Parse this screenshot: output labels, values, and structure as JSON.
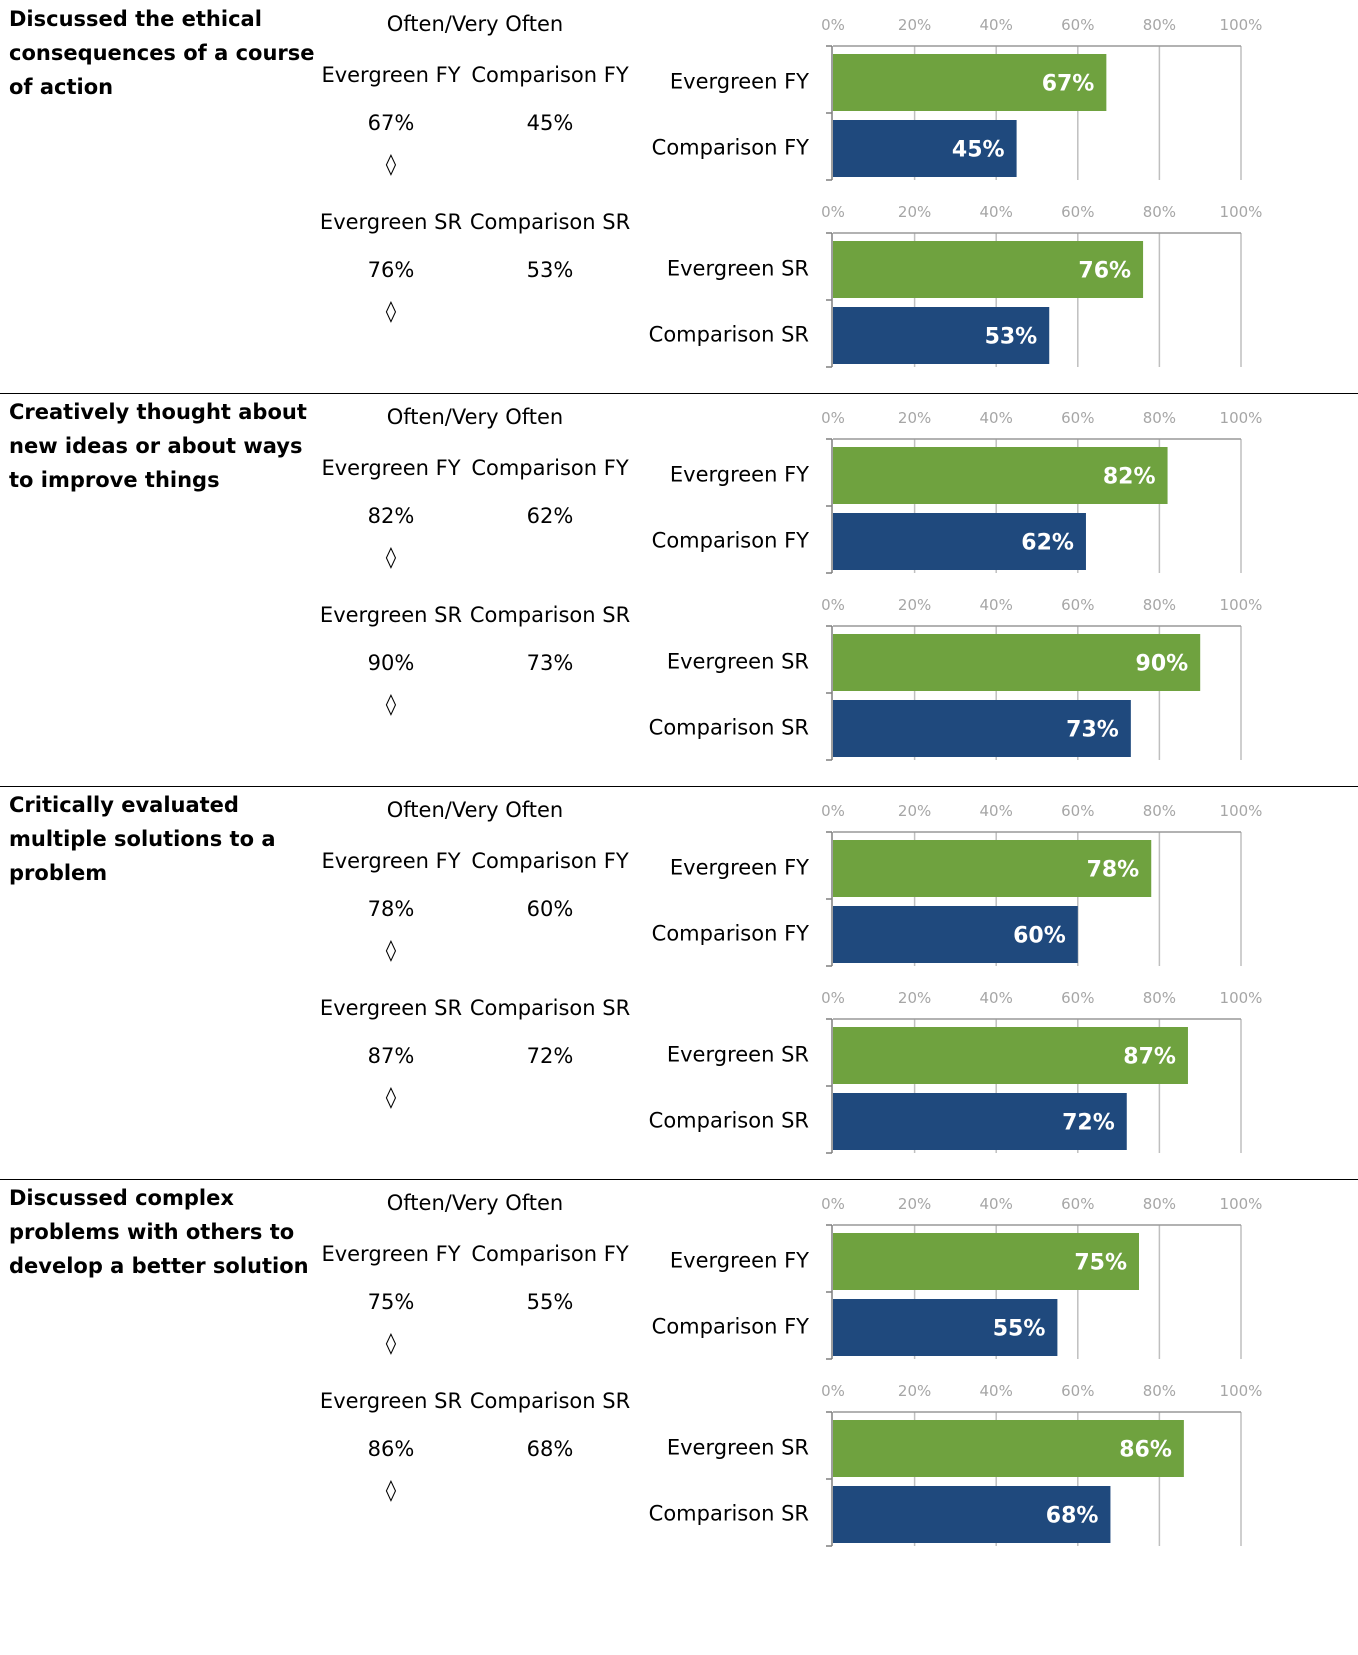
{
  "header_label": "Often/Very Often",
  "group_labels": {
    "evergreen_fy": "Evergreen FY",
    "comparison_fy": "Comparison FY",
    "evergreen_sr": "Evergreen SR",
    "comparison_sr": "Comparison SR"
  },
  "significance_marker": "◊",
  "colors": {
    "evergreen": "#6fa23f",
    "comparison": "#1f497d",
    "grid": "#bfbfbf",
    "tick_label": "#a6a6a6"
  },
  "chart_data": [
    {
      "type": "bar",
      "orientation": "horizontal",
      "title": "Discussed the ethical consequences of a course of action",
      "x_ticks": [
        "0%",
        "20%",
        "40%",
        "60%",
        "80%",
        "100%"
      ],
      "xlim": [
        0,
        100
      ],
      "groups": [
        {
          "categories": [
            "Evergreen FY",
            "Comparison FY"
          ],
          "values": [
            67,
            45
          ],
          "labels": [
            "67%",
            "45%"
          ]
        },
        {
          "categories": [
            "Evergreen SR",
            "Comparison SR"
          ],
          "values": [
            76,
            53
          ],
          "labels": [
            "76%",
            "53%"
          ]
        }
      ]
    },
    {
      "type": "bar",
      "orientation": "horizontal",
      "title": "Creatively thought about new ideas or about ways to improve things",
      "x_ticks": [
        "0%",
        "20%",
        "40%",
        "60%",
        "80%",
        "100%"
      ],
      "xlim": [
        0,
        100
      ],
      "groups": [
        {
          "categories": [
            "Evergreen FY",
            "Comparison FY"
          ],
          "values": [
            82,
            62
          ],
          "labels": [
            "82%",
            "62%"
          ]
        },
        {
          "categories": [
            "Evergreen SR",
            "Comparison SR"
          ],
          "values": [
            90,
            73
          ],
          "labels": [
            "90%",
            "73%"
          ]
        }
      ]
    },
    {
      "type": "bar",
      "orientation": "horizontal",
      "title": "Critically evaluated multiple solutions to a problem",
      "x_ticks": [
        "0%",
        "20%",
        "40%",
        "60%",
        "80%",
        "100%"
      ],
      "xlim": [
        0,
        100
      ],
      "groups": [
        {
          "categories": [
            "Evergreen FY",
            "Comparison FY"
          ],
          "values": [
            78,
            60
          ],
          "labels": [
            "78%",
            "60%"
          ]
        },
        {
          "categories": [
            "Evergreen SR",
            "Comparison SR"
          ],
          "values": [
            87,
            72
          ],
          "labels": [
            "87%",
            "72%"
          ]
        }
      ]
    },
    {
      "type": "bar",
      "orientation": "horizontal",
      "title": "Discussed complex problems with others to develop a better solution",
      "x_ticks": [
        "0%",
        "20%",
        "40%",
        "60%",
        "80%",
        "100%"
      ],
      "xlim": [
        0,
        100
      ],
      "groups": [
        {
          "categories": [
            "Evergreen FY",
            "Comparison FY"
          ],
          "values": [
            75,
            55
          ],
          "labels": [
            "75%",
            "55%"
          ]
        },
        {
          "categories": [
            "Evergreen SR",
            "Comparison SR"
          ],
          "values": [
            86,
            68
          ],
          "labels": [
            "86%",
            "68%"
          ]
        }
      ]
    }
  ]
}
